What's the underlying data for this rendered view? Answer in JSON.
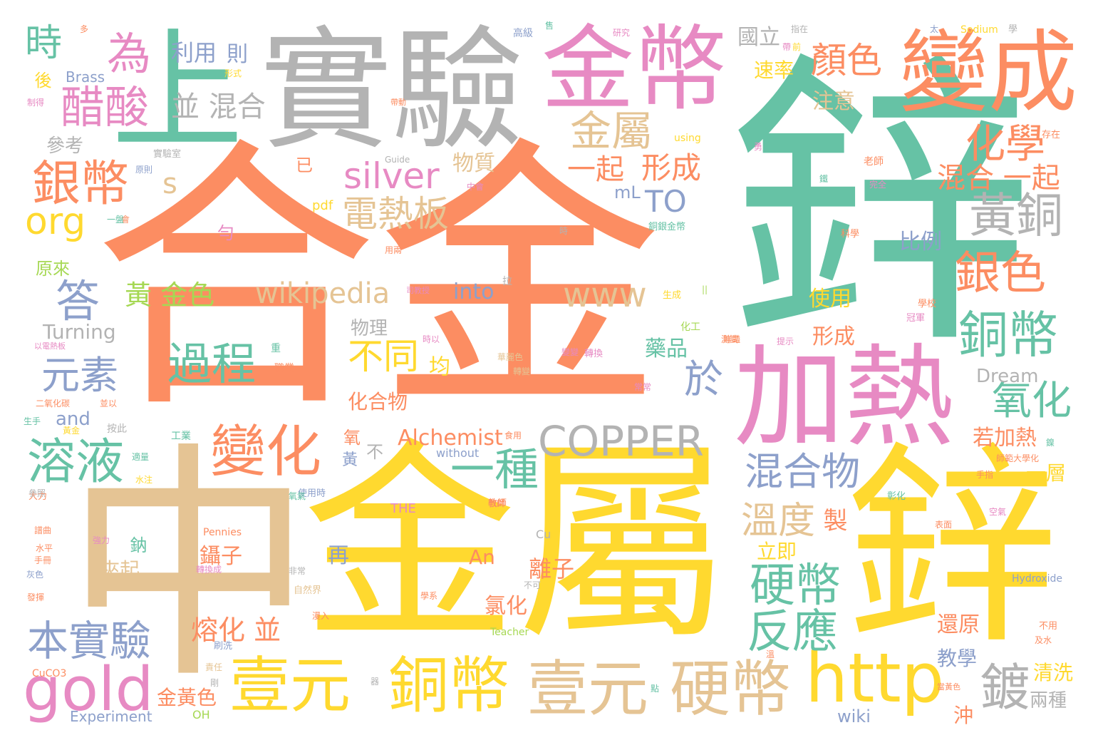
{
  "colors": {
    "orange": "#fc8d62",
    "teal": "#66c2a5",
    "gray": "#b3b3b3",
    "pink": "#e78ac3",
    "yellow": "#ffd92f",
    "tan": "#e5c494",
    "blue": "#8da0cb",
    "green": "#a6d854"
  },
  "words": {
    "hejin": "合金",
    "xin_big": "鋅",
    "jinshu_big": "金屬",
    "zhong": "中",
    "xin_big2": "鋅",
    "shiyan": "實驗",
    "shang": "上",
    "jinbi": "金幣",
    "biancheng": "變成",
    "jiare": "加熱",
    "guocheng": "過程",
    "yiyuan1": "壹元",
    "tongbi1": "銅幣",
    "yiyuan2": "壹元",
    "yingbi1": "硬幣",
    "http": "http",
    "gold": "gold",
    "benshiyan": "本實驗",
    "rongye": "溶液",
    "bianhua": "變化",
    "copper": "COPPER",
    "yinbi": "銀幣",
    "cusuan": "醋酸",
    "silver": "silver",
    "dianreban": "電熱板",
    "wei": "為",
    "shi": "時",
    "org": "org",
    "da": "答",
    "yuansu": "元素",
    "jinshu_small": "金屬",
    "huaxue": "化學",
    "huangtong": "黃銅",
    "yinse": "銀色",
    "tongbi2": "銅幣",
    "yanghua": "氧化",
    "hunhewu": "混合物",
    "yingbi2": "硬幣",
    "fanying": "反應",
    "du": "鍍",
    "wendu": "溫度",
    "yizhong": "一種",
    "butong": "不同",
    "yu": "於",
    "www": "www",
    "wikipedia": "wikipedia",
    "yanse": "顏色",
    "xingcheng1": "形成",
    "yiqi1": "一起",
    "hunhe_yiqi": "混合 一起",
    "bing_hunhe": "並 混合",
    "liyong": "利用",
    "ze": "則",
    "sulv": "速率",
    "zhuyi": "注意",
    "guoli": "國立",
    "wuzhi": "物質",
    "to": "TO",
    "s_letter": "s",
    "huang_jinse": "黃 金色",
    "into": "into",
    "alchemist": "Alchemist",
    "turning": "Turning",
    "canmao": "參考",
    "shiyong": "使用",
    "xingcheng2": "形成",
    "bili": "比例",
    "yaopin": "藥品",
    "ruojiare": "若加熱",
    "yiceng": "一層",
    "zhi": "製",
    "lijí": "立即",
    "lizi": "離子",
    "niezi": "鑷子",
    "jiaqi": "夾起",
    "ronghua": "熔化 並",
    "lühua": "氯化",
    "huanyuan": "還原",
    "jiaoxue": "教學",
    "qingxi": "清洗",
    "liangzhong": "兩種",
    "chong": "沖",
    "wiki": "wiki",
    "jinhuangse": "金黃色",
    "experiment": "Experiment",
    "oh": "OH",
    "an": "An",
    "dream": "Dream",
    "brass": "Brass",
    "and": "and",
    "huahewu": "化合物",
    "jun": "均",
    "wuli": "物理",
    "yuanlai": "原來",
    "hou": "後",
    "yi": "已",
    "ml": "mL",
    "pdf": "pdf",
    "yun": "勻",
    "yang": "氧",
    "bu": "不",
    "huang": "黃",
    "zai": "再",
    "na": "鈉",
    "the": "THE",
    "pennies": "Pennies",
    "without": "without",
    "cu": "Cu",
    "teacher": "Teacher",
    "cuco3": "CuCO3",
    "hydroxide": "Hydroxide",
    "sodium": "Sodium",
    "using": "using",
    "guide": "Guide",
    "gaoji": "高級",
    "shiyanshi": "實驗室",
    "xingshi": "形式",
    "zhixu": "制得",
    "shengcheng": "生成",
    "huagong": "化工",
    "xuexiao": "學校",
    "guanjun": "冠軍",
    "cunzai": "存在",
    "laoshi": "老師",
    "wanquan": "完全",
    "kexue": "科學",
    "tongyin": "銅銀金幣",
    "shiyan_lab": "甲乙",
    "yuanliao": "原料",
    "bukexing": "不可",
    "ziranjie": "自然界",
    "feichang": "非常",
    "changchang": "常常",
    "jingshi": "敬師",
    "gongye": "工業",
    "shuizhu": "水注",
    "dali": "大力",
    "shiliang": "適量",
    "shuiping": "水平",
    "huise": "灰色",
    "fahui": "發揮",
    "shoushi": "手指",
    "kongqi": "空氣",
    "biaomian": "表面",
    "shuaxian": "刷洗",
    "zeren": "責任",
    "bu_yong": "不用",
    "jishui": "及水",
    "yiyang": "一樣",
    "dang": "當",
    "danghuangse": "當黃色",
    "ercyang": "二氧化碳",
    "shoushou": "生手",
    "yihuabi": "以電熱板",
    "yuanyou": "原有",
    "zhenchang": "珍藏",
    "misc_a": "彰化",
    "misc_b": "鮮豔",
    "misc_c": "參照",
    "misc_d": "使用時",
    "misc_e": "氧氣",
    "misc_f": "原因",
    "misc_g": "按此",
    "misc_h": "盛",
    "misc_i": "華麗色",
    "misc_j": "轉變",
    "misc_k": "兩種物",
    "misc_l": "師範大學化",
    "misc_m": "鎳",
    "misc_n": "變",
    "misc_o": "轉換",
    "misc_p": "提示",
    "misc_q": "測試",
    "misc_r": "職業",
    "misc_s": "重",
    "misc_t": "時以",
    "misc_u": "帶",
    "misc_v": "黑",
    "misc_w": "剛",
    "misc_x": "漫入",
    "misc_y": "溫",
    "misc_z": "虹",
    "misc_aa": "拉",
    "misc_ab": "||",
    "misc_ac": "教師",
    "misc_ad": "製作",
    "misc_ae": "學系",
    "misc_af": "器",
    "misc_ag": "點",
    "misc_ah": "食用",
    "misc_ai": "太",
    "misc_aj": "學",
    "misc_ak": "指在",
    "misc_al": "原則",
    "misc_am": "售",
    "misc_an": "前",
    "misc_ao": "研究",
    "misc_ap": "會",
    "misc_aq": "帶動",
    "misc_ar": "中會",
    "misc_as": "時",
    "misc_at": "用兩",
    "misc_au": "司教授",
    "misc_av": "強力",
    "misc_aw": "華",
    "misc_ax": "手冊",
    "misc_ay": "譜曲",
    "misc_az": "鐵",
    "misc_ba": "並以",
    "misc_bb": "黃金",
    "misc_bc": "轉換成",
    "misc_bd": "勇",
    "misc_be": "一盤",
    "misc_bf": "多",
    "misc_bg": "愛麗",
    "misc_bh": "變變"
  }
}
